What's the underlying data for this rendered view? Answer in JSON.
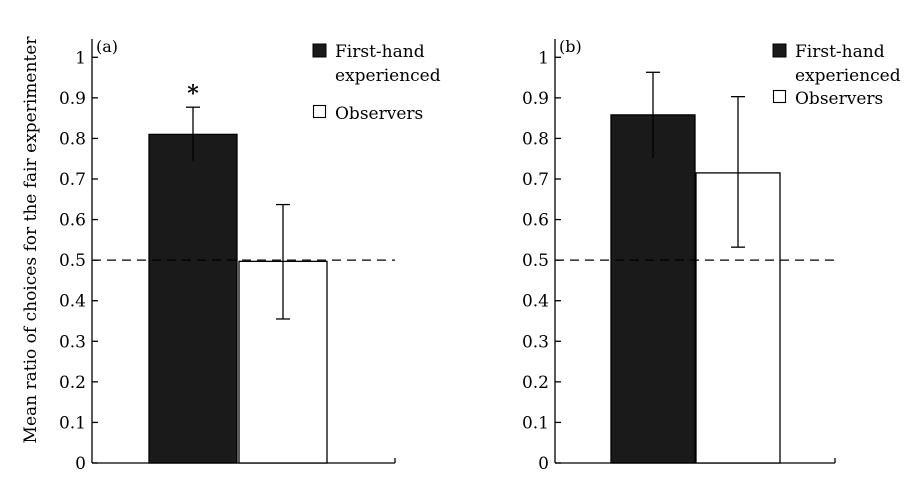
{
  "chart_data": {
    "type": "bar",
    "ylabel": "Mean ratio of choices for the fair experimenter",
    "ylim": [
      0,
      1.05
    ],
    "yticks": [
      0,
      0.1,
      0.2,
      0.3,
      0.4,
      0.5,
      0.6,
      0.7,
      0.8,
      0.9,
      1
    ],
    "ytick_labels": [
      "0",
      "0.1",
      "0.2",
      "0.3",
      "0.4",
      "0.5",
      "0.6",
      "0.7",
      "0.8",
      "0.9",
      "1"
    ],
    "reference_line": {
      "y": 0.5,
      "style": "dashed"
    },
    "legend": [
      {
        "label_lines": [
          "First-hand",
          "experienced"
        ],
        "color": "#1a1a1a",
        "symbol": "■"
      },
      {
        "label_lines": [
          "Observers"
        ],
        "color": "#ffffff",
        "symbol": "□"
      }
    ],
    "legend_placement": "top-right",
    "grid": false,
    "panels": [
      {
        "label": "(a)",
        "series": [
          {
            "group": "First-hand experienced",
            "value": 0.81,
            "error_low": 0.745,
            "error_high": 0.877,
            "color": "#1a1a1a",
            "annotation": "*"
          },
          {
            "group": "Observers",
            "value": 0.497,
            "error_low": 0.355,
            "error_high": 0.637,
            "color": "#ffffff"
          }
        ]
      },
      {
        "label": "(b)",
        "series": [
          {
            "group": "First-hand experienced",
            "value": 0.858,
            "error_low": 0.752,
            "error_high": 0.963,
            "color": "#1a1a1a"
          },
          {
            "group": "Observers",
            "value": 0.715,
            "error_low": 0.532,
            "error_high": 0.903,
            "color": "#ffffff"
          }
        ]
      }
    ]
  }
}
